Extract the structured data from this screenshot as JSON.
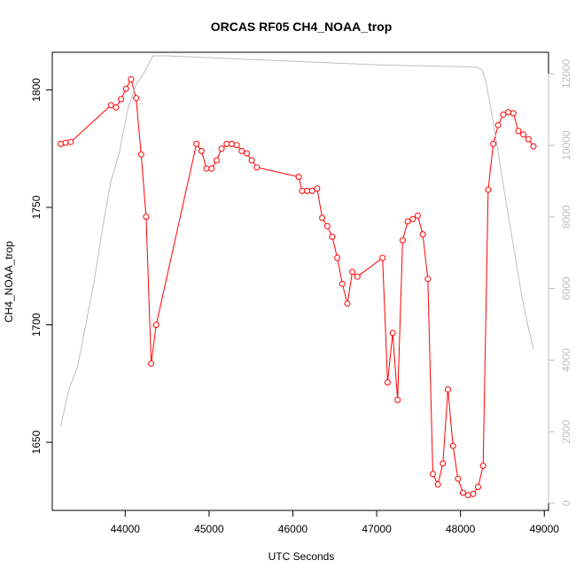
{
  "chart_data": {
    "type": "line",
    "title": "ORCAS RF05 CH4_NOAA_trop",
    "xlabel": "UTC Seconds",
    "ylabel": "CH4_NOAA_trop",
    "xlim": [
      43130,
      49050
    ],
    "ylim": [
      1621,
      1816
    ],
    "y2lim": [
      -200,
      12600
    ],
    "xticks": [
      44000,
      45000,
      46000,
      47000,
      48000,
      49000
    ],
    "yticks": [
      1650,
      1700,
      1750,
      1800
    ],
    "y2ticks": [
      0,
      2000,
      4000,
      6000,
      8000,
      10000,
      12000
    ],
    "grid": false,
    "colors": {
      "series": "#ff0000",
      "secondary": "#bebebe",
      "axis": "#000000"
    },
    "series": [
      {
        "axis": "left",
        "style": "line+points",
        "x": [
          43230,
          43290,
          43350,
          43830,
          43890,
          43950,
          44010,
          44070,
          44130,
          44190,
          44250,
          44310,
          44370,
          44850,
          44910,
          44970,
          45030,
          45090,
          45150,
          45210,
          45270,
          45330,
          45390,
          45450,
          45510,
          45570,
          46070,
          46110,
          46170,
          46230,
          46290,
          46350,
          46410,
          46470,
          46530,
          46590,
          46650,
          46710,
          46770,
          47070,
          47130,
          47190,
          47250,
          47310,
          47370,
          47430,
          47490,
          47550,
          47610,
          47670,
          47730,
          47790,
          47850,
          47910,
          47970,
          48030,
          48090,
          48150,
          48210,
          48270,
          48330,
          48390,
          48450,
          48510,
          48570,
          48630,
          48690,
          48750,
          48810,
          48870
        ],
        "y": [
          1777,
          1777.5,
          1777.8,
          1793.5,
          1792.5,
          1796,
          1800.5,
          1804.5,
          1796.5,
          1772.5,
          1746,
          1683.5,
          1700,
          1777,
          1774,
          1766.5,
          1766.5,
          1770,
          1775,
          1777,
          1777,
          1776.5,
          1774,
          1773,
          1770,
          1767,
          1763,
          1757,
          1757,
          1757,
          1758,
          1745.5,
          1742,
          1737.5,
          1728.5,
          1717.5,
          1709,
          1722.5,
          1720.5,
          1728.5,
          1675.5,
          1696.5,
          1668,
          1736,
          1744,
          1745,
          1746.5,
          1738.5,
          1719.5,
          1636.5,
          1632,
          1641,
          1672.5,
          1648.5,
          1634.5,
          1628.5,
          1627.5,
          1628,
          1631,
          1640,
          1757.5,
          1777,
          1785,
          1789.5,
          1790.5,
          1790,
          1782.5,
          1781,
          1779,
          1776
        ]
      },
      {
        "axis": "right",
        "style": "line",
        "x": [
          43230,
          43330,
          43430,
          43530,
          43630,
          43730,
          43830,
          43930,
          44030,
          44130,
          44230,
          44330,
          44380,
          44500,
          45000,
          45500,
          46000,
          46500,
          47000,
          47500,
          48000,
          48200,
          48260,
          48300,
          48380,
          48450,
          48530,
          48630,
          48730,
          48800,
          48870
        ],
        "y": [
          2150,
          3200,
          3800,
          5000,
          6200,
          7700,
          9000,
          9800,
          11000,
          11700,
          12050,
          12500,
          12500,
          12500,
          12450,
          12400,
          12350,
          12300,
          12250,
          12220,
          12200,
          12180,
          12100,
          11800,
          10800,
          9800,
          8600,
          7200,
          5800,
          5000,
          4300
        ]
      }
    ]
  }
}
